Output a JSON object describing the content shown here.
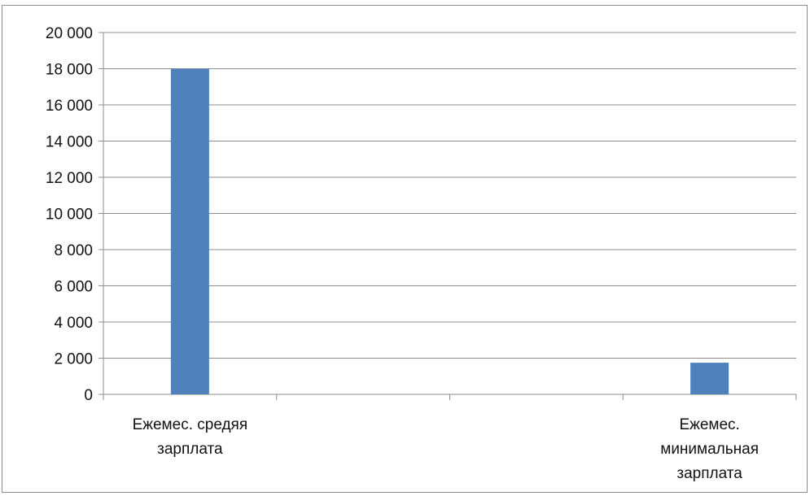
{
  "chart_data": {
    "type": "bar",
    "x_slots": [
      "Ежемес. средяя зарплата",
      "",
      "",
      "Ежемес. минимальная зарплата"
    ],
    "category_lines": [
      [
        "Ежемес. средяя",
        "зарплата"
      ],
      [],
      [],
      [
        "Ежемес.",
        "минимальная",
        "зарплата"
      ]
    ],
    "values": [
      18000,
      null,
      null,
      1750
    ],
    "ylim": [
      0,
      20000
    ],
    "y_ticks": [
      0,
      2000,
      4000,
      6000,
      8000,
      10000,
      12000,
      14000,
      16000,
      18000,
      20000
    ],
    "y_tick_labels": [
      "0",
      "2 000",
      "4 000",
      "6 000",
      "8 000",
      "10 000",
      "12 000",
      "14 000",
      "16 000",
      "18 000",
      "20 000"
    ],
    "grid": true,
    "legend": "none",
    "bar_color": "#4f81bd",
    "grid_color": "#8c8c8c"
  }
}
